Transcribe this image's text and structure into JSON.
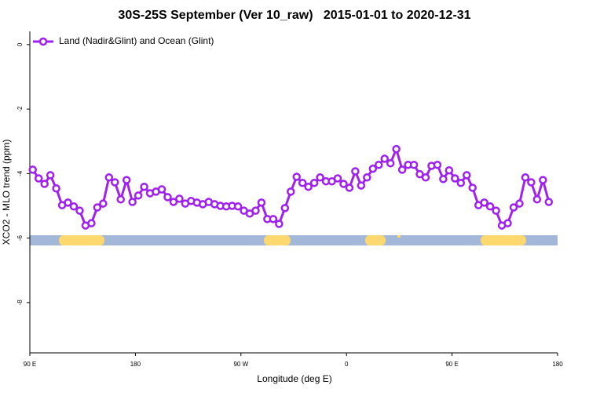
{
  "chart_data": {
    "type": "line",
    "title": "30S-25S September (Ver 10_raw)   2015-01-01 to 2020-12-31",
    "x_label": "Longitude (deg E)",
    "y_label": "XCO2 - MLO trend (ppm)",
    "xlim": [
      90,
      540
    ],
    "ylim": [
      -9.56,
      0.41
    ],
    "xticks": [
      {
        "value": 90,
        "label": "90 E"
      },
      180,
      {
        "value": 270,
        "label": "90 W"
      },
      {
        "value": 360,
        "label": "0"
      },
      {
        "value": 450,
        "label": "90 E"
      },
      {
        "value": 540,
        "label": "180"
      }
    ],
    "yticks": [
      0,
      -2,
      -4,
      -6,
      -8
    ],
    "grid": false,
    "legend": "top-left",
    "series": [
      {
        "name": "Land (Nadir&Glint) and Ocean (Glint)",
        "color": "#a020f0",
        "x": [
          92.5,
          97.5,
          102.5,
          107.5,
          112.5,
          117.5,
          122.5,
          127.5,
          132.5,
          137.5,
          142.5,
          147.5,
          152.5,
          157.5,
          162.5,
          167.5,
          172.5,
          177.5,
          182.5,
          187.5,
          192.5,
          197.5,
          202.5,
          207.5,
          212.5,
          217.5,
          222.5,
          227.5,
          232.5,
          237.5,
          242.5,
          247.5,
          252.5,
          257.5,
          262.5,
          267.5,
          272.5,
          277.5,
          282.5,
          287.5,
          292.5,
          297.5,
          302.5,
          307.5,
          312.5,
          317.5,
          322.5,
          327.5,
          332.5,
          337.5,
          342.5,
          347.5,
          352.5,
          357.5,
          362.5,
          367.5,
          372.5,
          377.5,
          382.5,
          387.5,
          392.5,
          397.5,
          402.5,
          407.5,
          412.5,
          417.5,
          422.5,
          427.5,
          432.5,
          437.5,
          442.5,
          447.5,
          452.5,
          457.5,
          462.5,
          467.5,
          472.5,
          477.5,
          482.5,
          487.5,
          492.5,
          497.5,
          502.5,
          507.5,
          512.5,
          517.5,
          522.5,
          527.5,
          532.5
        ],
        "values": [
          -3.88,
          -4.15,
          -4.32,
          -4.05,
          -4.46,
          -4.98,
          -4.9,
          -5.02,
          -5.15,
          -5.61,
          -5.54,
          -5.05,
          -4.93,
          -4.12,
          -4.27,
          -4.8,
          -4.2,
          -4.88,
          -4.68,
          -4.41,
          -4.61,
          -4.56,
          -4.49,
          -4.73,
          -4.88,
          -4.78,
          -4.93,
          -4.85,
          -4.9,
          -4.95,
          -4.88,
          -4.95,
          -5.0,
          -5.02,
          -5.0,
          -5.02,
          -5.15,
          -5.24,
          -5.15,
          -4.9,
          -5.41,
          -5.41,
          -5.56,
          -5.07,
          -4.56,
          -4.1,
          -4.29,
          -4.41,
          -4.29,
          -4.12,
          -4.24,
          -4.24,
          -4.15,
          -4.32,
          -4.44,
          -3.93,
          -4.37,
          -4.12,
          -3.85,
          -3.73,
          -3.54,
          -3.68,
          -3.24,
          -3.88,
          -3.73,
          -3.73,
          -4.02,
          -4.12,
          -3.76,
          -3.73,
          -4.17,
          -3.9,
          -4.15,
          -4.29,
          -4.05,
          -4.44,
          -4.98,
          -4.9,
          -5.02,
          -5.15,
          -5.61,
          -5.54,
          -5.05,
          -4.93,
          -4.12,
          -4.27,
          -4.8,
          -4.2,
          -4.88
        ]
      }
    ]
  }
}
